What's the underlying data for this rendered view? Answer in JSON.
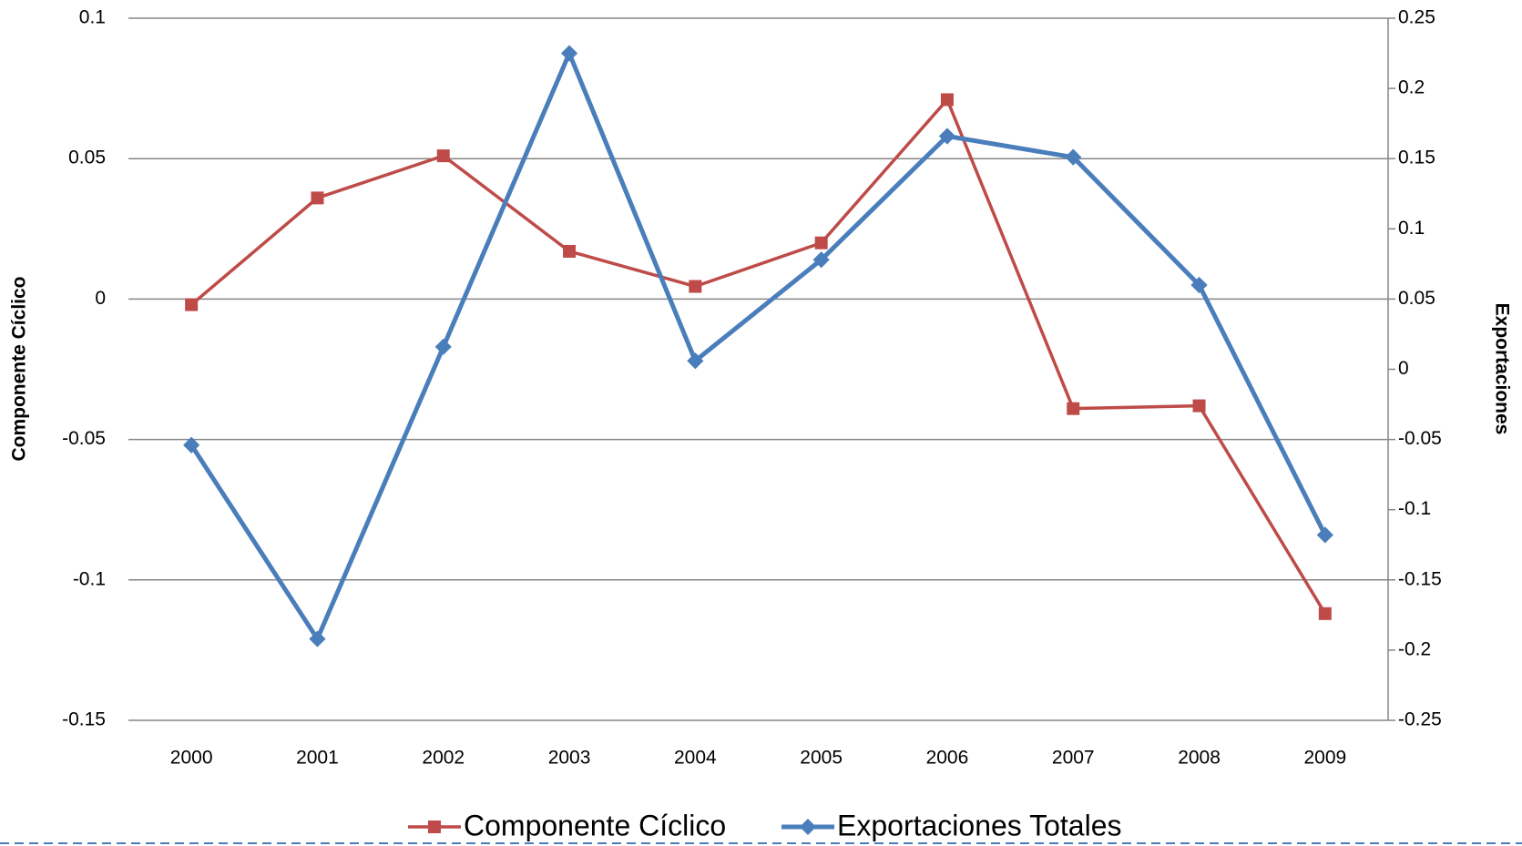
{
  "chart_data": {
    "type": "line",
    "categories": [
      "2000",
      "2001",
      "2002",
      "2003",
      "2004",
      "2005",
      "2006",
      "2007",
      "2008",
      "2009"
    ],
    "series": [
      {
        "name": "Componente Cíclico",
        "color": "#be4b48",
        "marker": "square",
        "axis": "y",
        "values": [
          -0.002,
          0.036,
          0.051,
          0.017,
          0.0045,
          0.02,
          0.071,
          -0.039,
          -0.038,
          -0.112
        ]
      },
      {
        "name": "Exportaciones Totales",
        "color": "#4a7ebb",
        "marker": "diamond",
        "axis": "y2",
        "values": [
          -0.054,
          -0.192,
          0.016,
          0.225,
          0.006,
          0.078,
          0.166,
          0.151,
          0.06,
          -0.118
        ]
      }
    ],
    "ylabel": "Componente Cíclico",
    "y2label": "Exportaciones",
    "ylim": [
      -0.15,
      0.1
    ],
    "yticks": [
      -0.15,
      -0.1,
      -0.05,
      0,
      0.05,
      0.1
    ],
    "y2lim": [
      -0.25,
      0.25
    ],
    "y2ticks": [
      -0.25,
      -0.2,
      -0.15,
      -0.1,
      -0.05,
      0,
      0.05,
      0.1,
      0.15,
      0.2,
      0.25
    ],
    "grid": true,
    "legend": "bottom"
  }
}
